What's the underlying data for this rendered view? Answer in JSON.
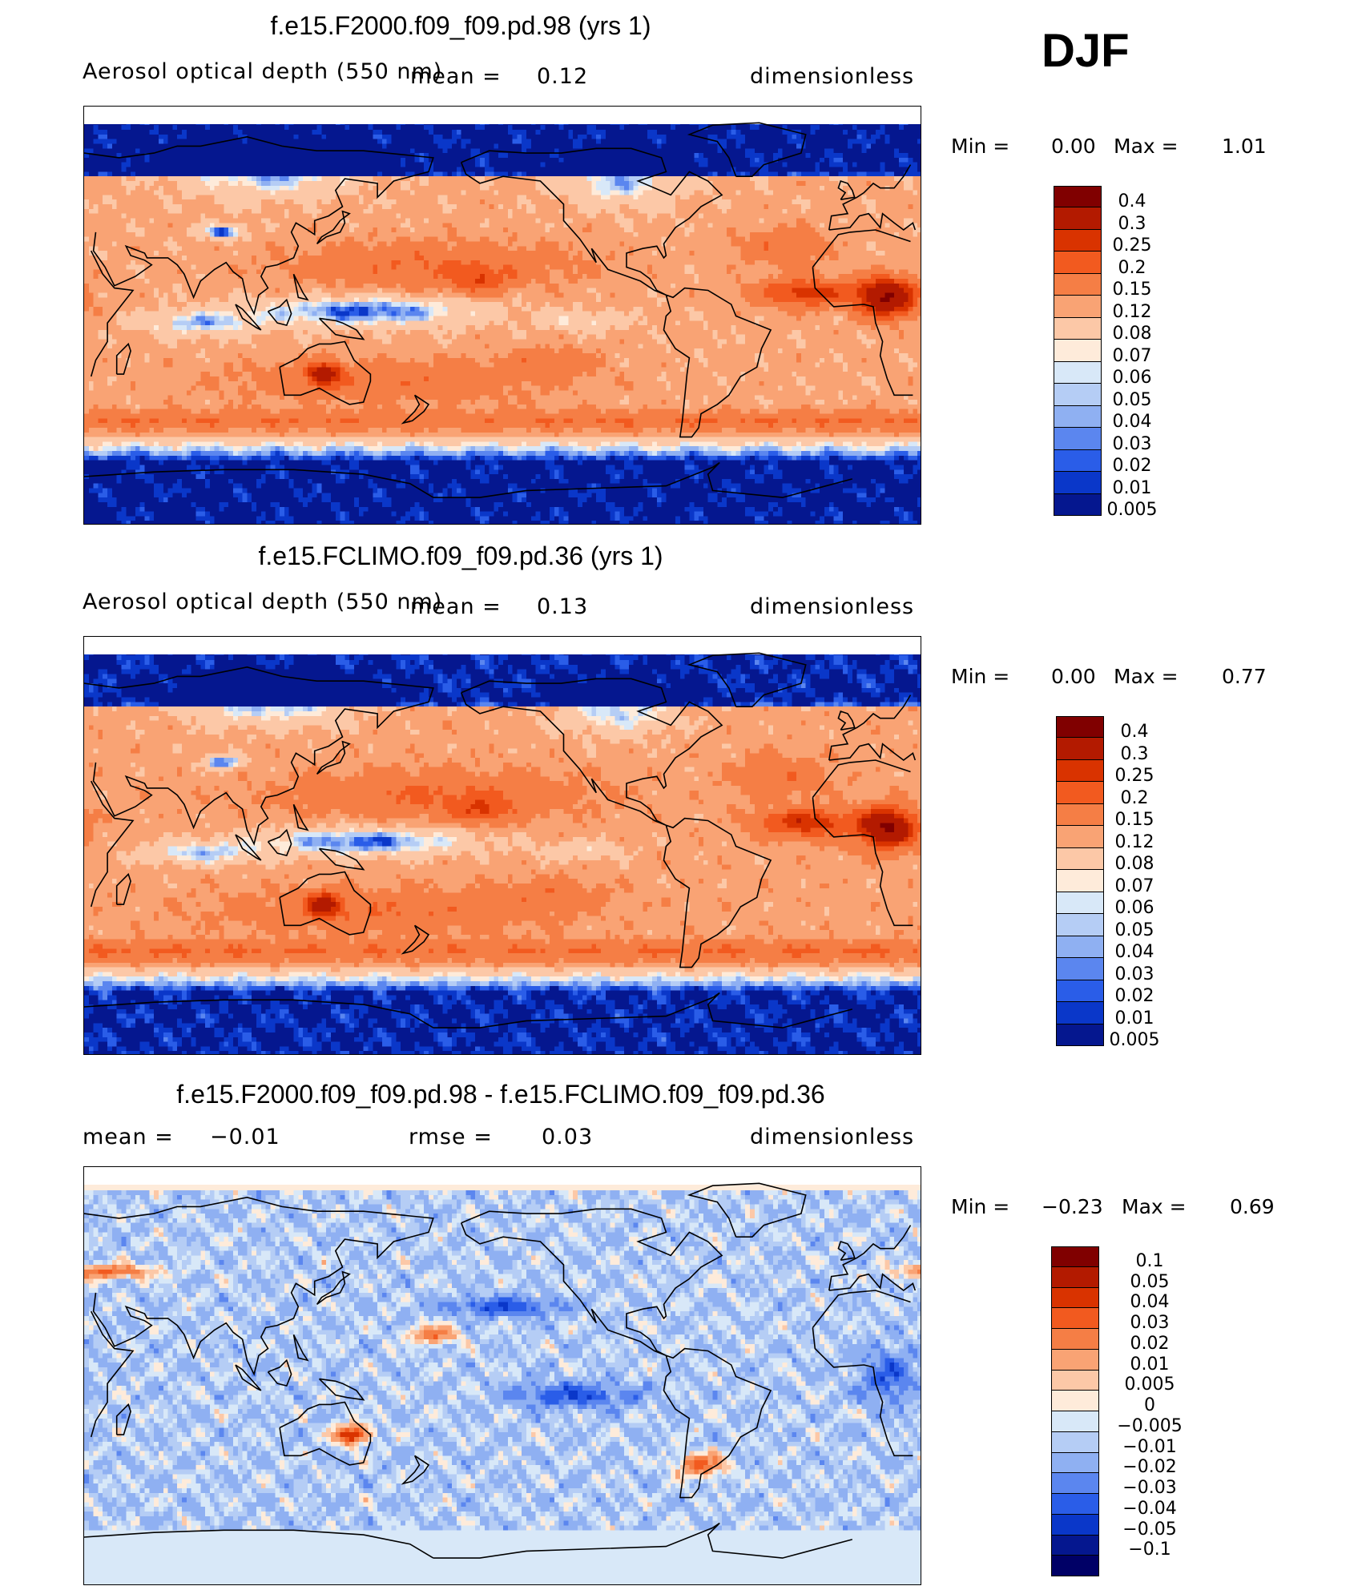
{
  "season": "DJF",
  "chart_data": [
    {
      "type": "heatmap",
      "title": "f.e15.F2000.f09_f09.pd.98 (yrs 1)",
      "variable": "Aerosol optical depth (550 nm)",
      "stat_label": "mean =",
      "stat_value": "0.12",
      "units": "dimensionless",
      "min_label": "Min =",
      "min_value": "0.00",
      "max_label": "Max =",
      "max_value": "1.01",
      "levels": [
        "0.4",
        "0.3",
        "0.25",
        "0.2",
        "0.15",
        "0.12",
        "0.08",
        "0.07",
        "0.06",
        "0.05",
        "0.04",
        "0.03",
        "0.02",
        "0.01",
        "0.005"
      ],
      "colors": [
        "#800000",
        "#b31a00",
        "#d93300",
        "#f25a1f",
        "#f57e45",
        "#f9a374",
        "#fcc8a7",
        "#feebda",
        "#d8e8f8",
        "#b5cdf5",
        "#8fb0f2",
        "#5b86ef",
        "#2a5de8",
        "#0a37c9",
        "#05178f"
      ]
    },
    {
      "type": "heatmap",
      "title": "f.e15.FCLIMO.f09_f09.pd.36 (yrs 1)",
      "variable": "Aerosol optical depth (550 nm)",
      "stat_label": "mean =",
      "stat_value": "0.13",
      "units": "dimensionless",
      "min_label": "Min =",
      "min_value": "0.00",
      "max_label": "Max =",
      "max_value": "0.77",
      "levels": [
        "0.4",
        "0.3",
        "0.25",
        "0.2",
        "0.15",
        "0.12",
        "0.08",
        "0.07",
        "0.06",
        "0.05",
        "0.04",
        "0.03",
        "0.02",
        "0.01",
        "0.005"
      ],
      "colors": [
        "#800000",
        "#b31a00",
        "#d93300",
        "#f25a1f",
        "#f57e45",
        "#f9a374",
        "#fcc8a7",
        "#feebda",
        "#d8e8f8",
        "#b5cdf5",
        "#8fb0f2",
        "#5b86ef",
        "#2a5de8",
        "#0a37c9",
        "#05178f"
      ]
    },
    {
      "type": "heatmap",
      "title": "f.e15.F2000.f09_f09.pd.98 - f.e15.FCLIMO.f09_f09.pd.36",
      "stat_label": "mean =",
      "stat_value": "−0.01",
      "rmse_label": "rmse =",
      "rmse_value": "0.03",
      "units": "dimensionless",
      "min_label": "Min =",
      "min_value": "−0.23",
      "max_label": "Max =",
      "max_value": "0.69",
      "levels": [
        "0.1",
        "0.05",
        "0.04",
        "0.03",
        "0.02",
        "0.01",
        "0.005",
        "0",
        "−0.005",
        "−0.01",
        "−0.02",
        "−0.03",
        "−0.04",
        "−0.05",
        "−0.1"
      ],
      "colors": [
        "#800000",
        "#b31a00",
        "#d93300",
        "#f25a1f",
        "#f57e45",
        "#f9a374",
        "#fcc8a7",
        "#feebda",
        "#d8e8f8",
        "#b5cdf5",
        "#8fb0f2",
        "#5b86ef",
        "#2a5de8",
        "#0a37c9",
        "#05178f",
        "#000066"
      ]
    }
  ]
}
